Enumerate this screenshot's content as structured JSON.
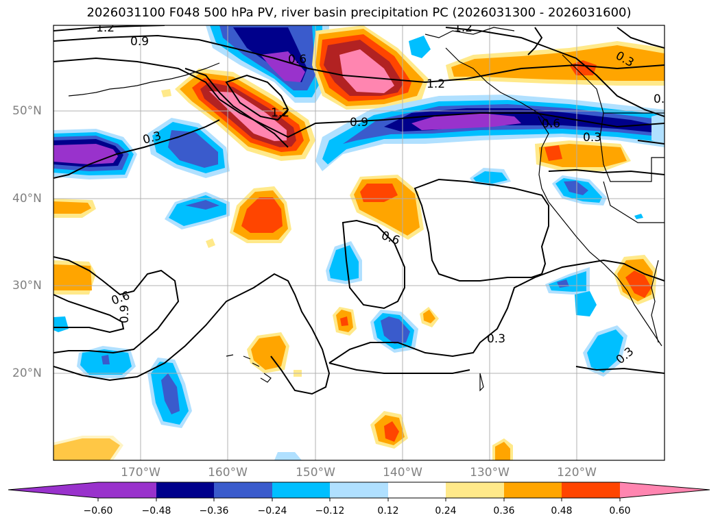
{
  "title": "2026031100 F048 500 hPa PV, river basin precipitation PC (2026031300 - 2026031600)",
  "colors": {
    "neg4": "#9932cc",
    "neg3": "#00008b",
    "neg2": "#3a5bcc",
    "neg1": "#00bfff",
    "neg0": "#b0e0ff",
    "zero": "#ffffff",
    "pos0": "#ffe98a",
    "pos1": "#ffa500",
    "pos2": "#ff4500",
    "pos3": "#b22222",
    "pos4": "#ff85b0",
    "contour": "#000000",
    "grid": "#b0b0b0",
    "tick_label": "#808080"
  },
  "lat_labels": [
    "50°N",
    "40°N",
    "30°N",
    "20°N"
  ],
  "lon_labels": [
    "170°W",
    "160°W",
    "150°W",
    "140°W",
    "130°W",
    "120°W"
  ],
  "colorbar": {
    "ticks": [
      "−0.60",
      "−0.48",
      "−0.36",
      "−0.24",
      "−0.12",
      "0.12",
      "0.24",
      "0.36",
      "0.48",
      "0.60"
    ]
  },
  "contour_labels": [
    "1.2",
    "0.9",
    "0.6",
    "1.2",
    "1.2",
    "1.2",
    "0.9",
    "0.6",
    "0.3",
    "0.3",
    "0.3",
    "0.6",
    "0.9",
    "0.6",
    "0.3",
    "0.3",
    "0."
  ]
}
